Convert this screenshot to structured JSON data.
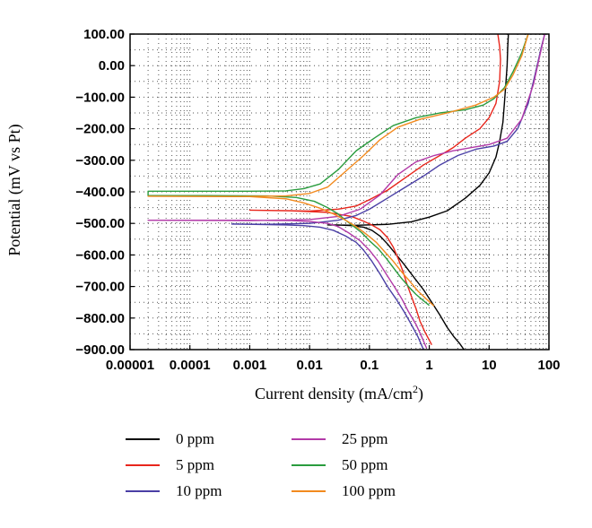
{
  "chart_data": {
    "type": "line",
    "xlabel_main": "Current density (mA/cm",
    "xlabel_sup": "2",
    "xlabel_end": ")",
    "ylabel": "Potential (mV vs Pt)",
    "x_scale": "log",
    "xlim": [
      1e-05,
      100
    ],
    "ylim": [
      -900,
      100
    ],
    "x_ticks": [
      1e-05,
      0.0001,
      0.001,
      0.01,
      0.1,
      1,
      10,
      100
    ],
    "x_tick_labels": [
      "0.00001",
      "0.0001",
      "0.001",
      "0.01",
      "0.1",
      "1",
      "10",
      "100"
    ],
    "y_ticks": [
      100,
      0,
      -100,
      -200,
      -300,
      -400,
      -500,
      -600,
      -700,
      -800,
      -900
    ],
    "y_tick_labels": [
      "100.00",
      "0.00",
      "−100.00",
      "−200.00",
      "−300.00",
      "−400.00",
      "−500.00",
      "−600.00",
      "−700.00",
      "−800.00",
      "−900.00"
    ],
    "grid": "dotted",
    "legend_position": "bottom",
    "series": [
      {
        "name": "0 ppm",
        "color": "#000000",
        "points": [
          [
            3.8,
            -900
          ],
          [
            3.2,
            -880
          ],
          [
            2.6,
            -860
          ],
          [
            2.0,
            -830
          ],
          [
            1.5,
            -790
          ],
          [
            1.1,
            -750
          ],
          [
            0.8,
            -710
          ],
          [
            0.55,
            -670
          ],
          [
            0.38,
            -630
          ],
          [
            0.27,
            -595
          ],
          [
            0.2,
            -565
          ],
          [
            0.15,
            -540
          ],
          [
            0.11,
            -522
          ],
          [
            0.08,
            -512
          ],
          [
            0.05,
            -507
          ],
          [
            0.03,
            -505
          ],
          [
            0.02,
            -505
          ],
          [
            0.06,
            -506
          ],
          [
            0.2,
            -503
          ],
          [
            0.5,
            -495
          ],
          [
            1.0,
            -480
          ],
          [
            2.0,
            -460
          ],
          [
            4.0,
            -420
          ],
          [
            7.0,
            -380
          ],
          [
            10,
            -340
          ],
          [
            13,
            -290
          ],
          [
            15,
            -240
          ],
          [
            17,
            -180
          ],
          [
            18,
            -120
          ],
          [
            19,
            -60
          ],
          [
            20,
            0
          ],
          [
            20.5,
            60
          ],
          [
            21,
            100
          ]
        ]
      },
      {
        "name": "5 ppm",
        "color": "#e8261c",
        "points": [
          [
            1.1,
            -885
          ],
          [
            1.0,
            -870
          ],
          [
            0.85,
            -845
          ],
          [
            0.7,
            -810
          ],
          [
            0.6,
            -770
          ],
          [
            0.5,
            -730
          ],
          [
            0.42,
            -690
          ],
          [
            0.36,
            -650
          ],
          [
            0.3,
            -610
          ],
          [
            0.25,
            -575
          ],
          [
            0.2,
            -545
          ],
          [
            0.15,
            -520
          ],
          [
            0.11,
            -505
          ],
          [
            0.08,
            -493
          ],
          [
            0.05,
            -478
          ],
          [
            0.02,
            -465
          ],
          [
            0.005,
            -460
          ],
          [
            0.001,
            -458
          ],
          [
            0.01,
            -461
          ],
          [
            0.03,
            -455
          ],
          [
            0.06,
            -445
          ],
          [
            0.1,
            -425
          ],
          [
            0.2,
            -395
          ],
          [
            0.4,
            -355
          ],
          [
            0.8,
            -315
          ],
          [
            1.5,
            -285
          ],
          [
            2.5,
            -260
          ],
          [
            4,
            -230
          ],
          [
            7,
            -200
          ],
          [
            10,
            -165
          ],
          [
            13,
            -120
          ],
          [
            15,
            -50
          ],
          [
            15.5,
            20
          ],
          [
            15,
            60
          ],
          [
            14,
            100
          ]
        ]
      },
      {
        "name": "10 ppm",
        "color": "#4a3fa5",
        "points": [
          [
            0.8,
            -900
          ],
          [
            0.65,
            -860
          ],
          [
            0.5,
            -820
          ],
          [
            0.38,
            -780
          ],
          [
            0.28,
            -740
          ],
          [
            0.2,
            -700
          ],
          [
            0.15,
            -660
          ],
          [
            0.11,
            -620
          ],
          [
            0.08,
            -585
          ],
          [
            0.06,
            -560
          ],
          [
            0.04,
            -540
          ],
          [
            0.025,
            -522
          ],
          [
            0.015,
            -512
          ],
          [
            0.008,
            -507
          ],
          [
            0.004,
            -505
          ],
          [
            0.0012,
            -503
          ],
          [
            0.0005,
            -502
          ],
          [
            0.002,
            -503
          ],
          [
            0.01,
            -500
          ],
          [
            0.03,
            -490
          ],
          [
            0.06,
            -475
          ],
          [
            0.1,
            -455
          ],
          [
            0.2,
            -420
          ],
          [
            0.4,
            -385
          ],
          [
            0.8,
            -350
          ],
          [
            1.5,
            -315
          ],
          [
            3,
            -285
          ],
          [
            6,
            -265
          ],
          [
            12,
            -255
          ],
          [
            20,
            -240
          ],
          [
            30,
            -200
          ],
          [
            45,
            -120
          ],
          [
            60,
            -20
          ],
          [
            75,
            60
          ],
          [
            85,
            100
          ]
        ]
      },
      {
        "name": "25 ppm",
        "color": "#b23aa8",
        "points": [
          [
            0.9,
            -895
          ],
          [
            0.75,
            -860
          ],
          [
            0.6,
            -820
          ],
          [
            0.45,
            -780
          ],
          [
            0.35,
            -740
          ],
          [
            0.26,
            -700
          ],
          [
            0.19,
            -660
          ],
          [
            0.14,
            -620
          ],
          [
            0.1,
            -585
          ],
          [
            0.07,
            -555
          ],
          [
            0.045,
            -530
          ],
          [
            0.03,
            -510
          ],
          [
            0.02,
            -500
          ],
          [
            0.01,
            -494
          ],
          [
            0.005,
            -491
          ],
          [
            0.001,
            -490
          ],
          [
            2e-05,
            -490
          ],
          [
            0.001,
            -491
          ],
          [
            0.01,
            -488
          ],
          [
            0.03,
            -478
          ],
          [
            0.07,
            -455
          ],
          [
            0.15,
            -410
          ],
          [
            0.3,
            -345
          ],
          [
            0.6,
            -305
          ],
          [
            1.2,
            -285
          ],
          [
            2.5,
            -270
          ],
          [
            5,
            -260
          ],
          [
            10,
            -250
          ],
          [
            20,
            -230
          ],
          [
            35,
            -170
          ],
          [
            55,
            -60
          ],
          [
            70,
            30
          ],
          [
            85,
            100
          ]
        ]
      },
      {
        "name": "50 ppm",
        "color": "#2a9c3e",
        "points": [
          [
            1.0,
            -760
          ],
          [
            0.8,
            -745
          ],
          [
            0.6,
            -725
          ],
          [
            0.45,
            -700
          ],
          [
            0.33,
            -670
          ],
          [
            0.25,
            -640
          ],
          [
            0.19,
            -610
          ],
          [
            0.14,
            -580
          ],
          [
            0.1,
            -555
          ],
          [
            0.075,
            -530
          ],
          [
            0.055,
            -510
          ],
          [
            0.04,
            -490
          ],
          [
            0.03,
            -470
          ],
          [
            0.02,
            -450
          ],
          [
            0.012,
            -430
          ],
          [
            0.006,
            -418
          ],
          [
            0.002,
            -413
          ],
          [
            0.0002,
            -412
          ],
          [
            2e-05,
            -412
          ],
          [
            2e-05,
            -398
          ],
          [
            0.001,
            -398
          ],
          [
            0.004,
            -397
          ],
          [
            0.008,
            -390
          ],
          [
            0.015,
            -375
          ],
          [
            0.03,
            -330
          ],
          [
            0.06,
            -270
          ],
          [
            0.12,
            -230
          ],
          [
            0.25,
            -190
          ],
          [
            0.6,
            -165
          ],
          [
            1.5,
            -150
          ],
          [
            4,
            -140
          ],
          [
            8,
            -125
          ],
          [
            12,
            -105
          ],
          [
            18,
            -70
          ],
          [
            25,
            -20
          ],
          [
            35,
            40
          ],
          [
            45,
            100
          ]
        ]
      },
      {
        "name": "100 ppm",
        "color": "#f28a1e",
        "points": [
          [
            1.2,
            -762
          ],
          [
            0.9,
            -740
          ],
          [
            0.65,
            -715
          ],
          [
            0.48,
            -685
          ],
          [
            0.35,
            -655
          ],
          [
            0.25,
            -620
          ],
          [
            0.18,
            -590
          ],
          [
            0.13,
            -560
          ],
          [
            0.09,
            -535
          ],
          [
            0.06,
            -510
          ],
          [
            0.04,
            -490
          ],
          [
            0.025,
            -470
          ],
          [
            0.015,
            -452
          ],
          [
            0.008,
            -435
          ],
          [
            0.004,
            -422
          ],
          [
            0.001,
            -415
          ],
          [
            2e-05,
            -414
          ],
          [
            0.0005,
            -415
          ],
          [
            0.004,
            -413
          ],
          [
            0.01,
            -405
          ],
          [
            0.02,
            -385
          ],
          [
            0.04,
            -335
          ],
          [
            0.08,
            -285
          ],
          [
            0.15,
            -235
          ],
          [
            0.3,
            -195
          ],
          [
            0.7,
            -170
          ],
          [
            2,
            -150
          ],
          [
            6,
            -125
          ],
          [
            12,
            -100
          ],
          [
            18,
            -75
          ],
          [
            25,
            -30
          ],
          [
            35,
            30
          ],
          [
            45,
            100
          ]
        ]
      }
    ]
  }
}
